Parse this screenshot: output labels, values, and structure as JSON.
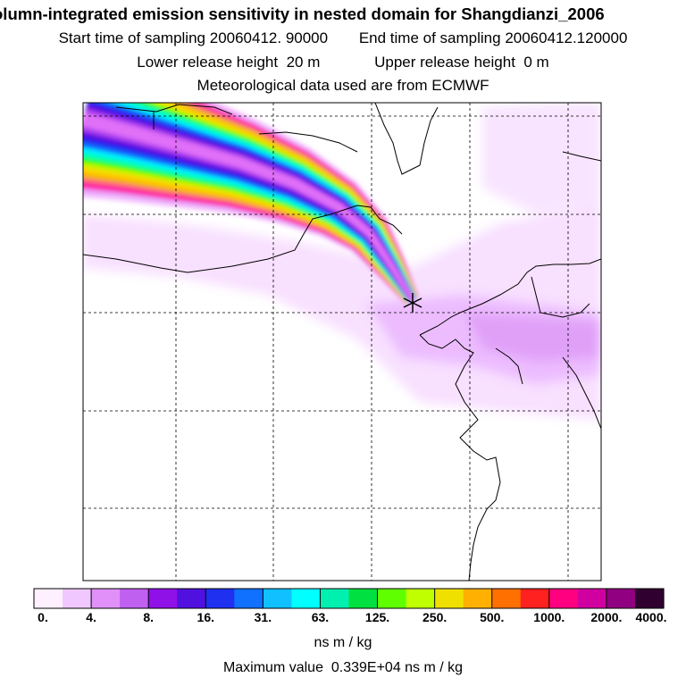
{
  "header": {
    "title": "olumn-integrated emission sensitivity in nested domain for Shangdianzi_2006",
    "start_label": "Start time of sampling",
    "start_value": "20060412. 90000",
    "end_label": "End time of sampling",
    "end_value": "20060412.120000",
    "lower_label": "Lower release height",
    "lower_value": "20 m",
    "upper_label": "Upper release height",
    "upper_value": "0 m",
    "met_note": "Meteorological data used are from ECMWF"
  },
  "legend": {
    "ticks": [
      "0.",
      "4.",
      "8.",
      "16.",
      "31.",
      "63.",
      "125.",
      "250.",
      "500.",
      "1000.",
      "2000.",
      "4000."
    ],
    "colors": [
      "#fff0ff",
      "#f0c8ff",
      "#e090f8",
      "#c060f0",
      "#9010e8",
      "#5010e0",
      "#2030f0",
      "#1070ff",
      "#10c0ff",
      "#00ffff",
      "#00f0b0",
      "#00e040",
      "#60ff00",
      "#c0ff00",
      "#f0e000",
      "#ffb000",
      "#ff7000",
      "#ff2020",
      "#ff0080",
      "#d000a0",
      "#900080",
      "#300030"
    ],
    "units": "ns m / kg",
    "max_label": "Maximum value",
    "max_value": "0.339E+04 ns m / kg"
  },
  "map": {
    "receptor": "Shangdianzi",
    "grid_note": "dashed lat/lon grid",
    "plume_colors": [
      "#f5c8ff",
      "#e89af8",
      "#ff00a8",
      "#ff6080",
      "#f5b000",
      "#ffd000",
      "#d0f000",
      "#30ff00",
      "#00ffb0",
      "#00f0ff",
      "#1070ff",
      "#2020f0",
      "#6010e0",
      "#b040f0",
      "#e070f8"
    ]
  }
}
